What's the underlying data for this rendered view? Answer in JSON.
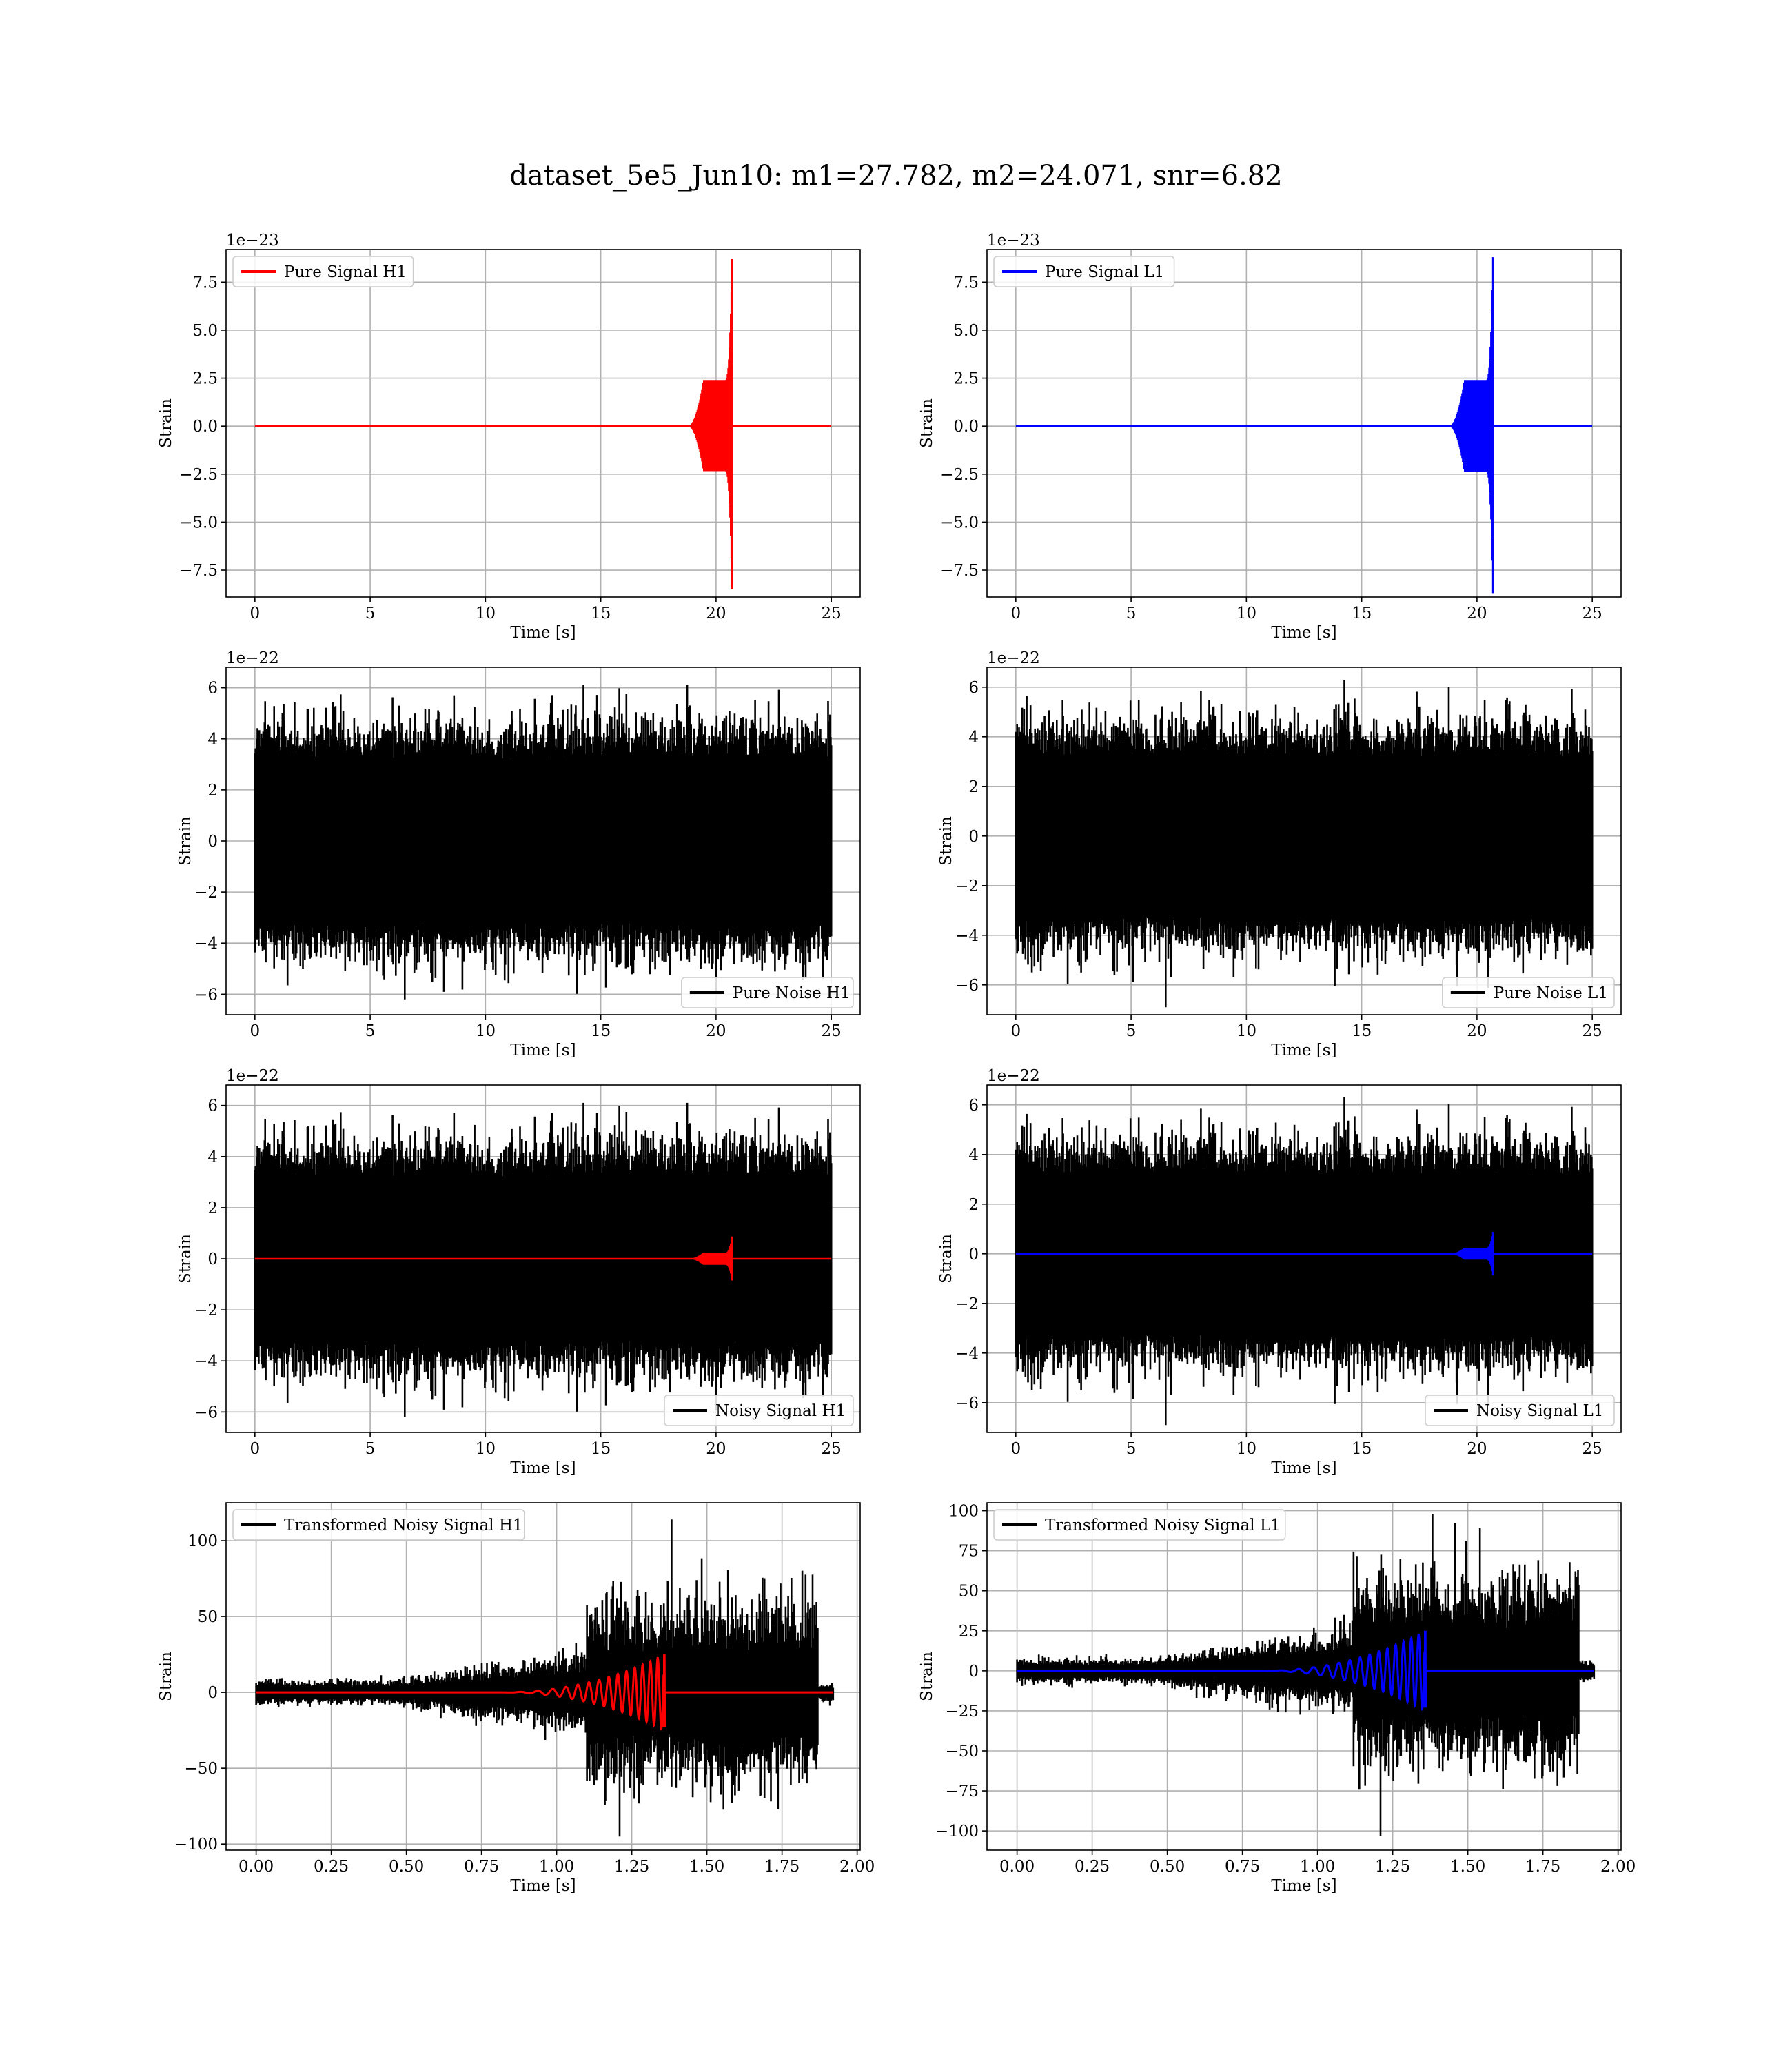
{
  "figure": {
    "suptitle": "dataset_5e5_Jun10: m1=27.782, m2=24.071, snr=6.82",
    "background": "#ffffff",
    "grid_color": "#b0b0b0"
  },
  "chart_data": [
    {
      "id": "pure-signal-h1",
      "type": "line",
      "xlabel": "Time [s]",
      "ylabel": "Strain",
      "offset_text": "1e−23",
      "xlim": [
        -1.25,
        26.25
      ],
      "ylim": [
        -8.9,
        9.2
      ],
      "xticks": [
        0,
        5,
        10,
        15,
        20,
        25
      ],
      "xtick_labels": [
        "0",
        "5",
        "10",
        "15",
        "20",
        "25"
      ],
      "yticks": [
        -7.5,
        -5.0,
        -2.5,
        0.0,
        2.5,
        5.0,
        7.5
      ],
      "ytick_labels": [
        "−7.5",
        "−5.0",
        "−2.5",
        "0.0",
        "2.5",
        "5.0",
        "7.5"
      ],
      "grid": true,
      "legend_position": "upper-left",
      "series": [
        {
          "name": "Pure Signal H1",
          "color": "#ff0000",
          "kind": "chirp",
          "t_start": 0,
          "t_end": 25,
          "t_chirp": 18.8,
          "t_merger": 20.7,
          "plateau": 2.4,
          "peak": 8.7,
          "peak_neg": -8.5
        }
      ]
    },
    {
      "id": "pure-signal-l1",
      "type": "line",
      "xlabel": "Time [s]",
      "ylabel": "Strain",
      "offset_text": "1e−23",
      "xlim": [
        -1.25,
        26.25
      ],
      "ylim": [
        -8.9,
        9.2
      ],
      "xticks": [
        0,
        5,
        10,
        15,
        20,
        25
      ],
      "xtick_labels": [
        "0",
        "5",
        "10",
        "15",
        "20",
        "25"
      ],
      "yticks": [
        -7.5,
        -5.0,
        -2.5,
        0.0,
        2.5,
        5.0,
        7.5
      ],
      "ytick_labels": [
        "−7.5",
        "−5.0",
        "−2.5",
        "0.0",
        "2.5",
        "5.0",
        "7.5"
      ],
      "grid": true,
      "legend_position": "upper-left",
      "series": [
        {
          "name": "Pure Signal L1",
          "color": "#0000ff",
          "kind": "chirp",
          "t_start": 0,
          "t_end": 25,
          "t_chirp": 18.8,
          "t_merger": 20.7,
          "plateau": 2.4,
          "peak": 8.8,
          "peak_neg": -8.7
        }
      ]
    },
    {
      "id": "pure-noise-h1",
      "type": "line",
      "xlabel": "Time [s]",
      "ylabel": "Strain",
      "offset_text": "1e−22",
      "xlim": [
        -1.25,
        26.25
      ],
      "ylim": [
        -6.8,
        6.8
      ],
      "xticks": [
        0,
        5,
        10,
        15,
        20,
        25
      ],
      "xtick_labels": [
        "0",
        "5",
        "10",
        "15",
        "20",
        "25"
      ],
      "yticks": [
        -6,
        -4,
        -2,
        0,
        2,
        4,
        6
      ],
      "ytick_labels": [
        "−6",
        "−4",
        "−2",
        "0",
        "2",
        "4",
        "6"
      ],
      "grid": true,
      "legend_position": "lower-right",
      "series": [
        {
          "name": "Pure Noise H1",
          "color": "#000000",
          "kind": "noise",
          "t_start": 0,
          "t_end": 25,
          "band": 3.2,
          "max": 6.1,
          "min": -6.2,
          "seed": 11
        }
      ]
    },
    {
      "id": "pure-noise-l1",
      "type": "line",
      "xlabel": "Time [s]",
      "ylabel": "Strain",
      "offset_text": "1e−22",
      "xlim": [
        -1.25,
        26.25
      ],
      "ylim": [
        -7.2,
        6.8
      ],
      "xticks": [
        0,
        5,
        10,
        15,
        20,
        25
      ],
      "xtick_labels": [
        "0",
        "5",
        "10",
        "15",
        "20",
        "25"
      ],
      "yticks": [
        -6,
        -4,
        -2,
        0,
        2,
        4,
        6
      ],
      "ytick_labels": [
        "−6",
        "−4",
        "−2",
        "0",
        "2",
        "4",
        "6"
      ],
      "grid": true,
      "legend_position": "lower-right",
      "series": [
        {
          "name": "Pure Noise L1",
          "color": "#000000",
          "kind": "noise",
          "t_start": 0,
          "t_end": 25,
          "band": 3.2,
          "max": 6.3,
          "min": -6.9,
          "seed": 23
        }
      ]
    },
    {
      "id": "noisy-signal-h1",
      "type": "line",
      "xlabel": "Time [s]",
      "ylabel": "Strain",
      "offset_text": "1e−22",
      "xlim": [
        -1.25,
        26.25
      ],
      "ylim": [
        -6.8,
        6.8
      ],
      "xticks": [
        0,
        5,
        10,
        15,
        20,
        25
      ],
      "xtick_labels": [
        "0",
        "5",
        "10",
        "15",
        "20",
        "25"
      ],
      "yticks": [
        -6,
        -4,
        -2,
        0,
        2,
        4,
        6
      ],
      "ytick_labels": [
        "−6",
        "−4",
        "−2",
        "0",
        "2",
        "4",
        "6"
      ],
      "grid": true,
      "legend_position": "lower-right",
      "series": [
        {
          "name": "Noisy Signal H1",
          "color": "#000000",
          "kind": "noise",
          "t_start": 0,
          "t_end": 25,
          "band": 3.2,
          "max": 6.1,
          "min": -6.2,
          "seed": 11
        },
        {
          "name": "",
          "color": "#ff0000",
          "kind": "chirp",
          "t_start": 0,
          "t_end": 25,
          "t_chirp": 18.8,
          "t_merger": 20.7,
          "plateau": 0.24,
          "peak": 0.87,
          "peak_neg": -0.85
        }
      ]
    },
    {
      "id": "noisy-signal-l1",
      "type": "line",
      "xlabel": "Time [s]",
      "ylabel": "Strain",
      "offset_text": "1e−22",
      "xlim": [
        -1.25,
        26.25
      ],
      "ylim": [
        -7.2,
        6.8
      ],
      "xticks": [
        0,
        5,
        10,
        15,
        20,
        25
      ],
      "xtick_labels": [
        "0",
        "5",
        "10",
        "15",
        "20",
        "25"
      ],
      "yticks": [
        -6,
        -4,
        -2,
        0,
        2,
        4,
        6
      ],
      "ytick_labels": [
        "−6",
        "−4",
        "−2",
        "0",
        "2",
        "4",
        "6"
      ],
      "grid": true,
      "legend_position": "lower-right",
      "series": [
        {
          "name": "Noisy Signal L1",
          "color": "#000000",
          "kind": "noise",
          "t_start": 0,
          "t_end": 25,
          "band": 3.2,
          "max": 6.3,
          "min": -6.9,
          "seed": 23
        },
        {
          "name": "",
          "color": "#0000ff",
          "kind": "chirp",
          "t_start": 0,
          "t_end": 25,
          "t_chirp": 18.8,
          "t_merger": 20.7,
          "plateau": 0.24,
          "peak": 0.88,
          "peak_neg": -0.87
        }
      ]
    },
    {
      "id": "transformed-noisy-signal-h1",
      "type": "line",
      "xlabel": "Time [s]",
      "ylabel": "Strain",
      "offset_text": "",
      "xlim": [
        -0.1,
        2.01
      ],
      "ylim": [
        -104,
        125
      ],
      "xticks": [
        0.0,
        0.25,
        0.5,
        0.75,
        1.0,
        1.25,
        1.5,
        1.75,
        2.0
      ],
      "xtick_labels": [
        "0.00",
        "0.25",
        "0.50",
        "0.75",
        "1.00",
        "1.25",
        "1.50",
        "1.75",
        "2.00"
      ],
      "yticks": [
        -100,
        -50,
        0,
        50,
        100
      ],
      "ytick_labels": [
        "−100",
        "−50",
        "0",
        "50",
        "100"
      ],
      "grid": true,
      "legend_position": "upper-left",
      "series": [
        {
          "name": "Transformed Noisy Signal H1",
          "color": "#000000",
          "kind": "tnoise",
          "t_start": 0,
          "t_end": 1.92,
          "t_step": 1.1,
          "t_drop": 1.87,
          "max": 114,
          "min": -95,
          "seed": 37
        },
        {
          "name": "",
          "color": "#ff0000",
          "kind": "tchirp",
          "t_start": 0,
          "t_end": 1.92,
          "t_chirp": 0.8,
          "t_merger": 1.36,
          "peak": 25,
          "peak_neg": -23
        }
      ]
    },
    {
      "id": "transformed-noisy-signal-l1",
      "type": "line",
      "xlabel": "Time [s]",
      "ylabel": "Strain",
      "offset_text": "",
      "xlim": [
        -0.1,
        2.01
      ],
      "ylim": [
        -112,
        105
      ],
      "xticks": [
        0.0,
        0.25,
        0.5,
        0.75,
        1.0,
        1.25,
        1.5,
        1.75,
        2.0
      ],
      "xtick_labels": [
        "0.00",
        "0.25",
        "0.50",
        "0.75",
        "1.00",
        "1.25",
        "1.50",
        "1.75",
        "2.00"
      ],
      "yticks": [
        -100,
        -75,
        -50,
        -25,
        0,
        25,
        50,
        75,
        100
      ],
      "ytick_labels": [
        "−100",
        "−75",
        "−50",
        "−25",
        "0",
        "25",
        "50",
        "75",
        "100"
      ],
      "grid": true,
      "legend_position": "upper-left",
      "series": [
        {
          "name": "Transformed Noisy Signal L1",
          "color": "#000000",
          "kind": "tnoise",
          "t_start": 0,
          "t_end": 1.92,
          "t_step": 1.12,
          "t_drop": 1.87,
          "max": 98,
          "min": -103,
          "seed": 53
        },
        {
          "name": "",
          "color": "#0000ff",
          "kind": "tchirp",
          "t_start": 0,
          "t_end": 1.92,
          "t_chirp": 0.8,
          "t_merger": 1.36,
          "peak": 25,
          "peak_neg": -23
        }
      ]
    }
  ]
}
